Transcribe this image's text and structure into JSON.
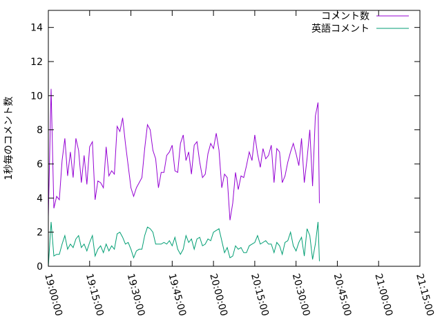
{
  "chart_data": {
    "type": "line",
    "title": "",
    "xlabel": "",
    "ylabel": "1秒毎のコメント数",
    "ylim": [
      0,
      15
    ],
    "yticks": [
      0,
      2,
      4,
      6,
      8,
      10,
      12,
      14
    ],
    "xlim": [
      "19:00:00",
      "21:15:00"
    ],
    "xticks": [
      "19:00:00",
      "19:15:00",
      "19:30:00",
      "19:45:00",
      "20:00:00",
      "20:15:00",
      "20:30:00",
      "20:45:00",
      "21:00:00",
      "21:15:00"
    ],
    "grid": false,
    "legend": "top-right",
    "series": [
      {
        "name": "コメント数",
        "color": "#9400d3",
        "points": [
          [
            "19:00:00",
            2.9
          ],
          [
            "19:01:00",
            10.4
          ],
          [
            "19:02:00",
            3.4
          ],
          [
            "19:03:00",
            4.1
          ],
          [
            "19:04:00",
            3.9
          ],
          [
            "19:05:00",
            6.2
          ],
          [
            "19:06:00",
            7.5
          ],
          [
            "19:07:00",
            5.3
          ],
          [
            "19:08:00",
            6.7
          ],
          [
            "19:09:00",
            5.2
          ],
          [
            "19:10:00",
            7.5
          ],
          [
            "19:11:00",
            6.8
          ],
          [
            "19:12:00",
            4.9
          ],
          [
            "19:13:00",
            6.5
          ],
          [
            "19:14:00",
            4.8
          ],
          [
            "19:15:00",
            7.0
          ],
          [
            "19:16:00",
            7.3
          ],
          [
            "19:17:00",
            3.9
          ],
          [
            "19:18:00",
            5.0
          ],
          [
            "19:19:00",
            4.9
          ],
          [
            "19:20:00",
            4.6
          ],
          [
            "19:21:00",
            7.0
          ],
          [
            "19:22:00",
            5.3
          ],
          [
            "19:23:00",
            5.6
          ],
          [
            "19:24:00",
            5.4
          ],
          [
            "19:25:00",
            8.2
          ],
          [
            "19:26:00",
            7.9
          ],
          [
            "19:27:00",
            8.7
          ],
          [
            "19:28:00",
            7.2
          ],
          [
            "19:29:00",
            5.9
          ],
          [
            "19:30:00",
            4.6
          ],
          [
            "19:31:00",
            4.1
          ],
          [
            "19:32:00",
            4.6
          ],
          [
            "19:33:00",
            4.9
          ],
          [
            "19:34:00",
            5.2
          ],
          [
            "19:35:00",
            6.9
          ],
          [
            "19:36:00",
            8.3
          ],
          [
            "19:37:00",
            8.0
          ],
          [
            "19:38:00",
            6.8
          ],
          [
            "19:39:00",
            6.3
          ],
          [
            "19:40:00",
            4.6
          ],
          [
            "19:41:00",
            5.5
          ],
          [
            "19:42:00",
            5.5
          ],
          [
            "19:43:00",
            6.5
          ],
          [
            "19:44:00",
            6.7
          ],
          [
            "19:45:00",
            7.1
          ],
          [
            "19:46:00",
            5.6
          ],
          [
            "19:47:00",
            5.5
          ],
          [
            "19:48:00",
            7.2
          ],
          [
            "19:49:00",
            7.7
          ],
          [
            "19:50:00",
            6.2
          ],
          [
            "19:51:00",
            6.7
          ],
          [
            "19:52:00",
            5.4
          ],
          [
            "19:53:00",
            7.1
          ],
          [
            "19:54:00",
            7.3
          ],
          [
            "19:55:00",
            6.1
          ],
          [
            "19:56:00",
            5.2
          ],
          [
            "19:57:00",
            5.4
          ],
          [
            "19:58:00",
            6.6
          ],
          [
            "19:59:00",
            7.2
          ],
          [
            "20:00:00",
            6.9
          ],
          [
            "20:01:00",
            7.8
          ],
          [
            "20:02:00",
            6.8
          ],
          [
            "20:03:00",
            4.6
          ],
          [
            "20:04:00",
            5.4
          ],
          [
            "20:05:00",
            5.2
          ],
          [
            "20:06:00",
            2.7
          ],
          [
            "20:07:00",
            3.7
          ],
          [
            "20:08:00",
            5.5
          ],
          [
            "20:09:00",
            4.5
          ],
          [
            "20:10:00",
            5.3
          ],
          [
            "20:11:00",
            5.2
          ],
          [
            "20:12:00",
            5.9
          ],
          [
            "20:13:00",
            6.7
          ],
          [
            "20:14:00",
            6.2
          ],
          [
            "20:15:00",
            7.7
          ],
          [
            "20:16:00",
            6.6
          ],
          [
            "20:17:00",
            5.8
          ],
          [
            "20:18:00",
            6.9
          ],
          [
            "20:19:00",
            6.3
          ],
          [
            "20:20:00",
            6.5
          ],
          [
            "20:21:00",
            7.1
          ],
          [
            "20:22:00",
            4.9
          ],
          [
            "20:23:00",
            6.9
          ],
          [
            "20:24:00",
            6.7
          ],
          [
            "20:25:00",
            4.9
          ],
          [
            "20:26:00",
            5.3
          ],
          [
            "20:27:00",
            6.1
          ],
          [
            "20:28:00",
            6.7
          ],
          [
            "20:29:00",
            7.2
          ],
          [
            "20:30:00",
            6.6
          ],
          [
            "20:31:00",
            5.9
          ],
          [
            "20:32:00",
            7.5
          ],
          [
            "20:33:00",
            4.9
          ],
          [
            "20:34:00",
            6.3
          ],
          [
            "20:35:00",
            8.0
          ],
          [
            "20:36:00",
            4.7
          ],
          [
            "20:37:00",
            8.8
          ],
          [
            "20:38:00",
            9.6
          ],
          [
            "20:38:30",
            3.7
          ]
        ]
      },
      {
        "name": "英語コメント",
        "color": "#009e73",
        "points": [
          [
            "19:00:00",
            0.0
          ],
          [
            "19:01:00",
            2.6
          ],
          [
            "19:02:00",
            0.6
          ],
          [
            "19:03:00",
            0.7
          ],
          [
            "19:04:00",
            0.7
          ],
          [
            "19:05:00",
            1.3
          ],
          [
            "19:06:00",
            1.8
          ],
          [
            "19:07:00",
            1.0
          ],
          [
            "19:08:00",
            1.3
          ],
          [
            "19:09:00",
            1.1
          ],
          [
            "19:10:00",
            1.6
          ],
          [
            "19:11:00",
            1.8
          ],
          [
            "19:12:00",
            1.1
          ],
          [
            "19:13:00",
            1.3
          ],
          [
            "19:14:00",
            0.9
          ],
          [
            "19:15:00",
            1.4
          ],
          [
            "19:16:00",
            1.8
          ],
          [
            "19:17:00",
            0.6
          ],
          [
            "19:18:00",
            1.0
          ],
          [
            "19:19:00",
            1.2
          ],
          [
            "19:20:00",
            0.8
          ],
          [
            "19:21:00",
            1.3
          ],
          [
            "19:22:00",
            0.9
          ],
          [
            "19:23:00",
            1.2
          ],
          [
            "19:24:00",
            1.0
          ],
          [
            "19:25:00",
            1.9
          ],
          [
            "19:26:00",
            2.0
          ],
          [
            "19:27:00",
            1.7
          ],
          [
            "19:28:00",
            1.3
          ],
          [
            "19:29:00",
            1.4
          ],
          [
            "19:30:00",
            1.0
          ],
          [
            "19:31:00",
            0.5
          ],
          [
            "19:32:00",
            0.9
          ],
          [
            "19:33:00",
            1.0
          ],
          [
            "19:34:00",
            1.0
          ],
          [
            "19:35:00",
            1.8
          ],
          [
            "19:36:00",
            2.3
          ],
          [
            "19:37:00",
            2.2
          ],
          [
            "19:38:00",
            2.0
          ],
          [
            "19:39:00",
            1.3
          ],
          [
            "19:40:00",
            1.3
          ],
          [
            "19:41:00",
            1.3
          ],
          [
            "19:42:00",
            1.4
          ],
          [
            "19:43:00",
            1.3
          ],
          [
            "19:44:00",
            1.5
          ],
          [
            "19:45:00",
            1.2
          ],
          [
            "19:46:00",
            1.7
          ],
          [
            "19:47:00",
            1.0
          ],
          [
            "19:48:00",
            0.7
          ],
          [
            "19:49:00",
            1.0
          ],
          [
            "19:50:00",
            1.8
          ],
          [
            "19:51:00",
            1.4
          ],
          [
            "19:52:00",
            1.6
          ],
          [
            "19:53:00",
            1.0
          ],
          [
            "19:54:00",
            1.6
          ],
          [
            "19:55:00",
            1.7
          ],
          [
            "19:56:00",
            1.2
          ],
          [
            "19:57:00",
            1.3
          ],
          [
            "19:58:00",
            1.6
          ],
          [
            "19:59:00",
            1.5
          ],
          [
            "20:00:00",
            2.0
          ],
          [
            "20:01:00",
            2.1
          ],
          [
            "20:02:00",
            2.2
          ],
          [
            "20:03:00",
            1.5
          ],
          [
            "20:04:00",
            0.8
          ],
          [
            "20:05:00",
            1.1
          ],
          [
            "20:06:00",
            0.5
          ],
          [
            "20:07:00",
            0.6
          ],
          [
            "20:08:00",
            1.2
          ],
          [
            "20:09:00",
            1.0
          ],
          [
            "20:10:00",
            1.1
          ],
          [
            "20:11:00",
            0.8
          ],
          [
            "20:12:00",
            0.8
          ],
          [
            "20:13:00",
            1.2
          ],
          [
            "20:14:00",
            1.3
          ],
          [
            "20:15:00",
            1.4
          ],
          [
            "20:16:00",
            1.8
          ],
          [
            "20:17:00",
            1.3
          ],
          [
            "20:18:00",
            1.4
          ],
          [
            "20:19:00",
            1.5
          ],
          [
            "20:20:00",
            1.3
          ],
          [
            "20:21:00",
            1.3
          ],
          [
            "20:22:00",
            0.8
          ],
          [
            "20:23:00",
            1.4
          ],
          [
            "20:24:00",
            1.2
          ],
          [
            "20:25:00",
            0.7
          ],
          [
            "20:26:00",
            1.4
          ],
          [
            "20:27:00",
            1.5
          ],
          [
            "20:28:00",
            2.0
          ],
          [
            "20:29:00",
            1.2
          ],
          [
            "20:30:00",
            0.9
          ],
          [
            "20:31:00",
            1.4
          ],
          [
            "20:32:00",
            1.7
          ],
          [
            "20:33:00",
            0.6
          ],
          [
            "20:34:00",
            2.2
          ],
          [
            "20:35:00",
            1.8
          ],
          [
            "20:36:00",
            0.4
          ],
          [
            "20:37:00",
            1.3
          ],
          [
            "20:38:00",
            2.6
          ],
          [
            "20:38:30",
            0.3
          ]
        ]
      }
    ]
  }
}
